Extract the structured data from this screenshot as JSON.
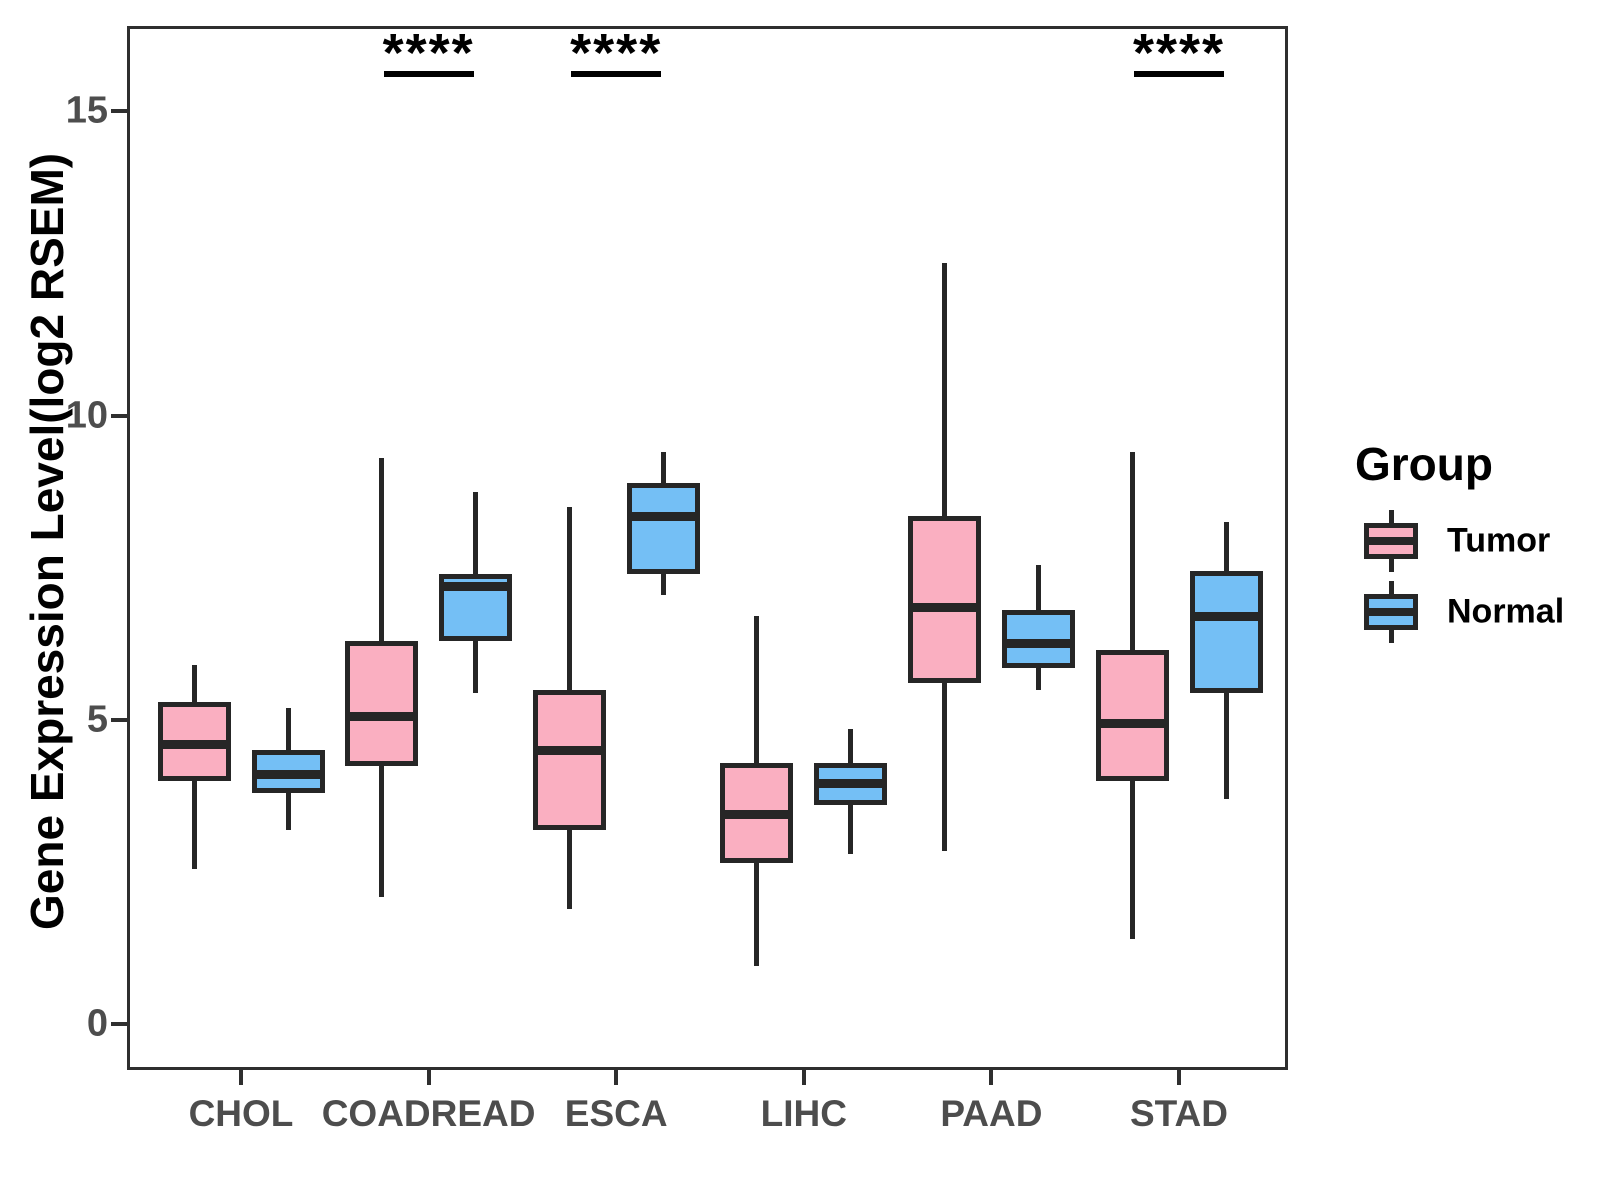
{
  "chart_data": {
    "type": "grouped_boxplot",
    "title": "",
    "xlabel": "",
    "ylabel": "Gene Expression Level(log2 RSEM)",
    "categories": [
      "CHOL",
      "COADREAD",
      "ESCA",
      "LIHC",
      "PAAD",
      "STAD"
    ],
    "y_ticks": [
      "0",
      "5",
      "10",
      "15"
    ],
    "y_tick_values": [
      0,
      5,
      10,
      15
    ],
    "ylim": [
      -0.75,
      16.4
    ],
    "grid": "off",
    "legend_position": "right",
    "series": [
      {
        "name": "Tumor",
        "color": "#FAAFC1",
        "boxes": [
          {
            "category": "CHOL",
            "whisker_low": 2.55,
            "q1": 4.0,
            "median": 4.6,
            "q3": 5.3,
            "whisker_high": 5.9
          },
          {
            "category": "COADREAD",
            "whisker_low": 2.1,
            "q1": 4.25,
            "median": 5.05,
            "q3": 6.3,
            "whisker_high": 9.3
          },
          {
            "category": "ESCA",
            "whisker_low": 1.9,
            "q1": 3.2,
            "median": 4.5,
            "q3": 5.5,
            "whisker_high": 8.5
          },
          {
            "category": "LIHC",
            "whisker_low": 0.95,
            "q1": 2.65,
            "median": 3.45,
            "q3": 4.3,
            "whisker_high": 6.7
          },
          {
            "category": "PAAD",
            "whisker_low": 2.85,
            "q1": 5.6,
            "median": 6.85,
            "q3": 8.35,
            "whisker_high": 12.5
          },
          {
            "category": "STAD",
            "whisker_low": 1.4,
            "q1": 4.0,
            "median": 4.95,
            "q3": 6.15,
            "whisker_high": 9.4
          }
        ]
      },
      {
        "name": "Normal",
        "color": "#74BFF5",
        "boxes": [
          {
            "category": "CHOL",
            "whisker_low": 3.2,
            "q1": 3.8,
            "median": 4.1,
            "q3": 4.5,
            "whisker_high": 5.2
          },
          {
            "category": "COADREAD",
            "whisker_low": 5.45,
            "q1": 6.3,
            "median": 7.2,
            "q3": 7.4,
            "whisker_high": 8.75
          },
          {
            "category": "ESCA",
            "whisker_low": 7.05,
            "q1": 7.4,
            "median": 8.35,
            "q3": 8.9,
            "whisker_high": 9.4
          },
          {
            "category": "LIHC",
            "whisker_low": 2.8,
            "q1": 3.6,
            "median": 3.95,
            "q3": 4.3,
            "whisker_high": 4.85
          },
          {
            "category": "PAAD",
            "whisker_low": 5.5,
            "q1": 5.85,
            "median": 6.25,
            "q3": 6.8,
            "whisker_high": 7.55
          },
          {
            "category": "STAD",
            "whisker_low": 3.7,
            "q1": 5.45,
            "median": 6.7,
            "q3": 7.45,
            "whisker_high": 8.25
          }
        ]
      }
    ],
    "significance": [
      {
        "category": "COADREAD",
        "label": "****"
      },
      {
        "category": "ESCA",
        "label": "****"
      },
      {
        "category": "STAD",
        "label": "****"
      }
    ]
  },
  "legend": {
    "title": "Group",
    "items": [
      {
        "label": "Tumor",
        "color": "#FAAFC1"
      },
      {
        "label": "Normal",
        "color": "#74BFF5"
      }
    ]
  }
}
